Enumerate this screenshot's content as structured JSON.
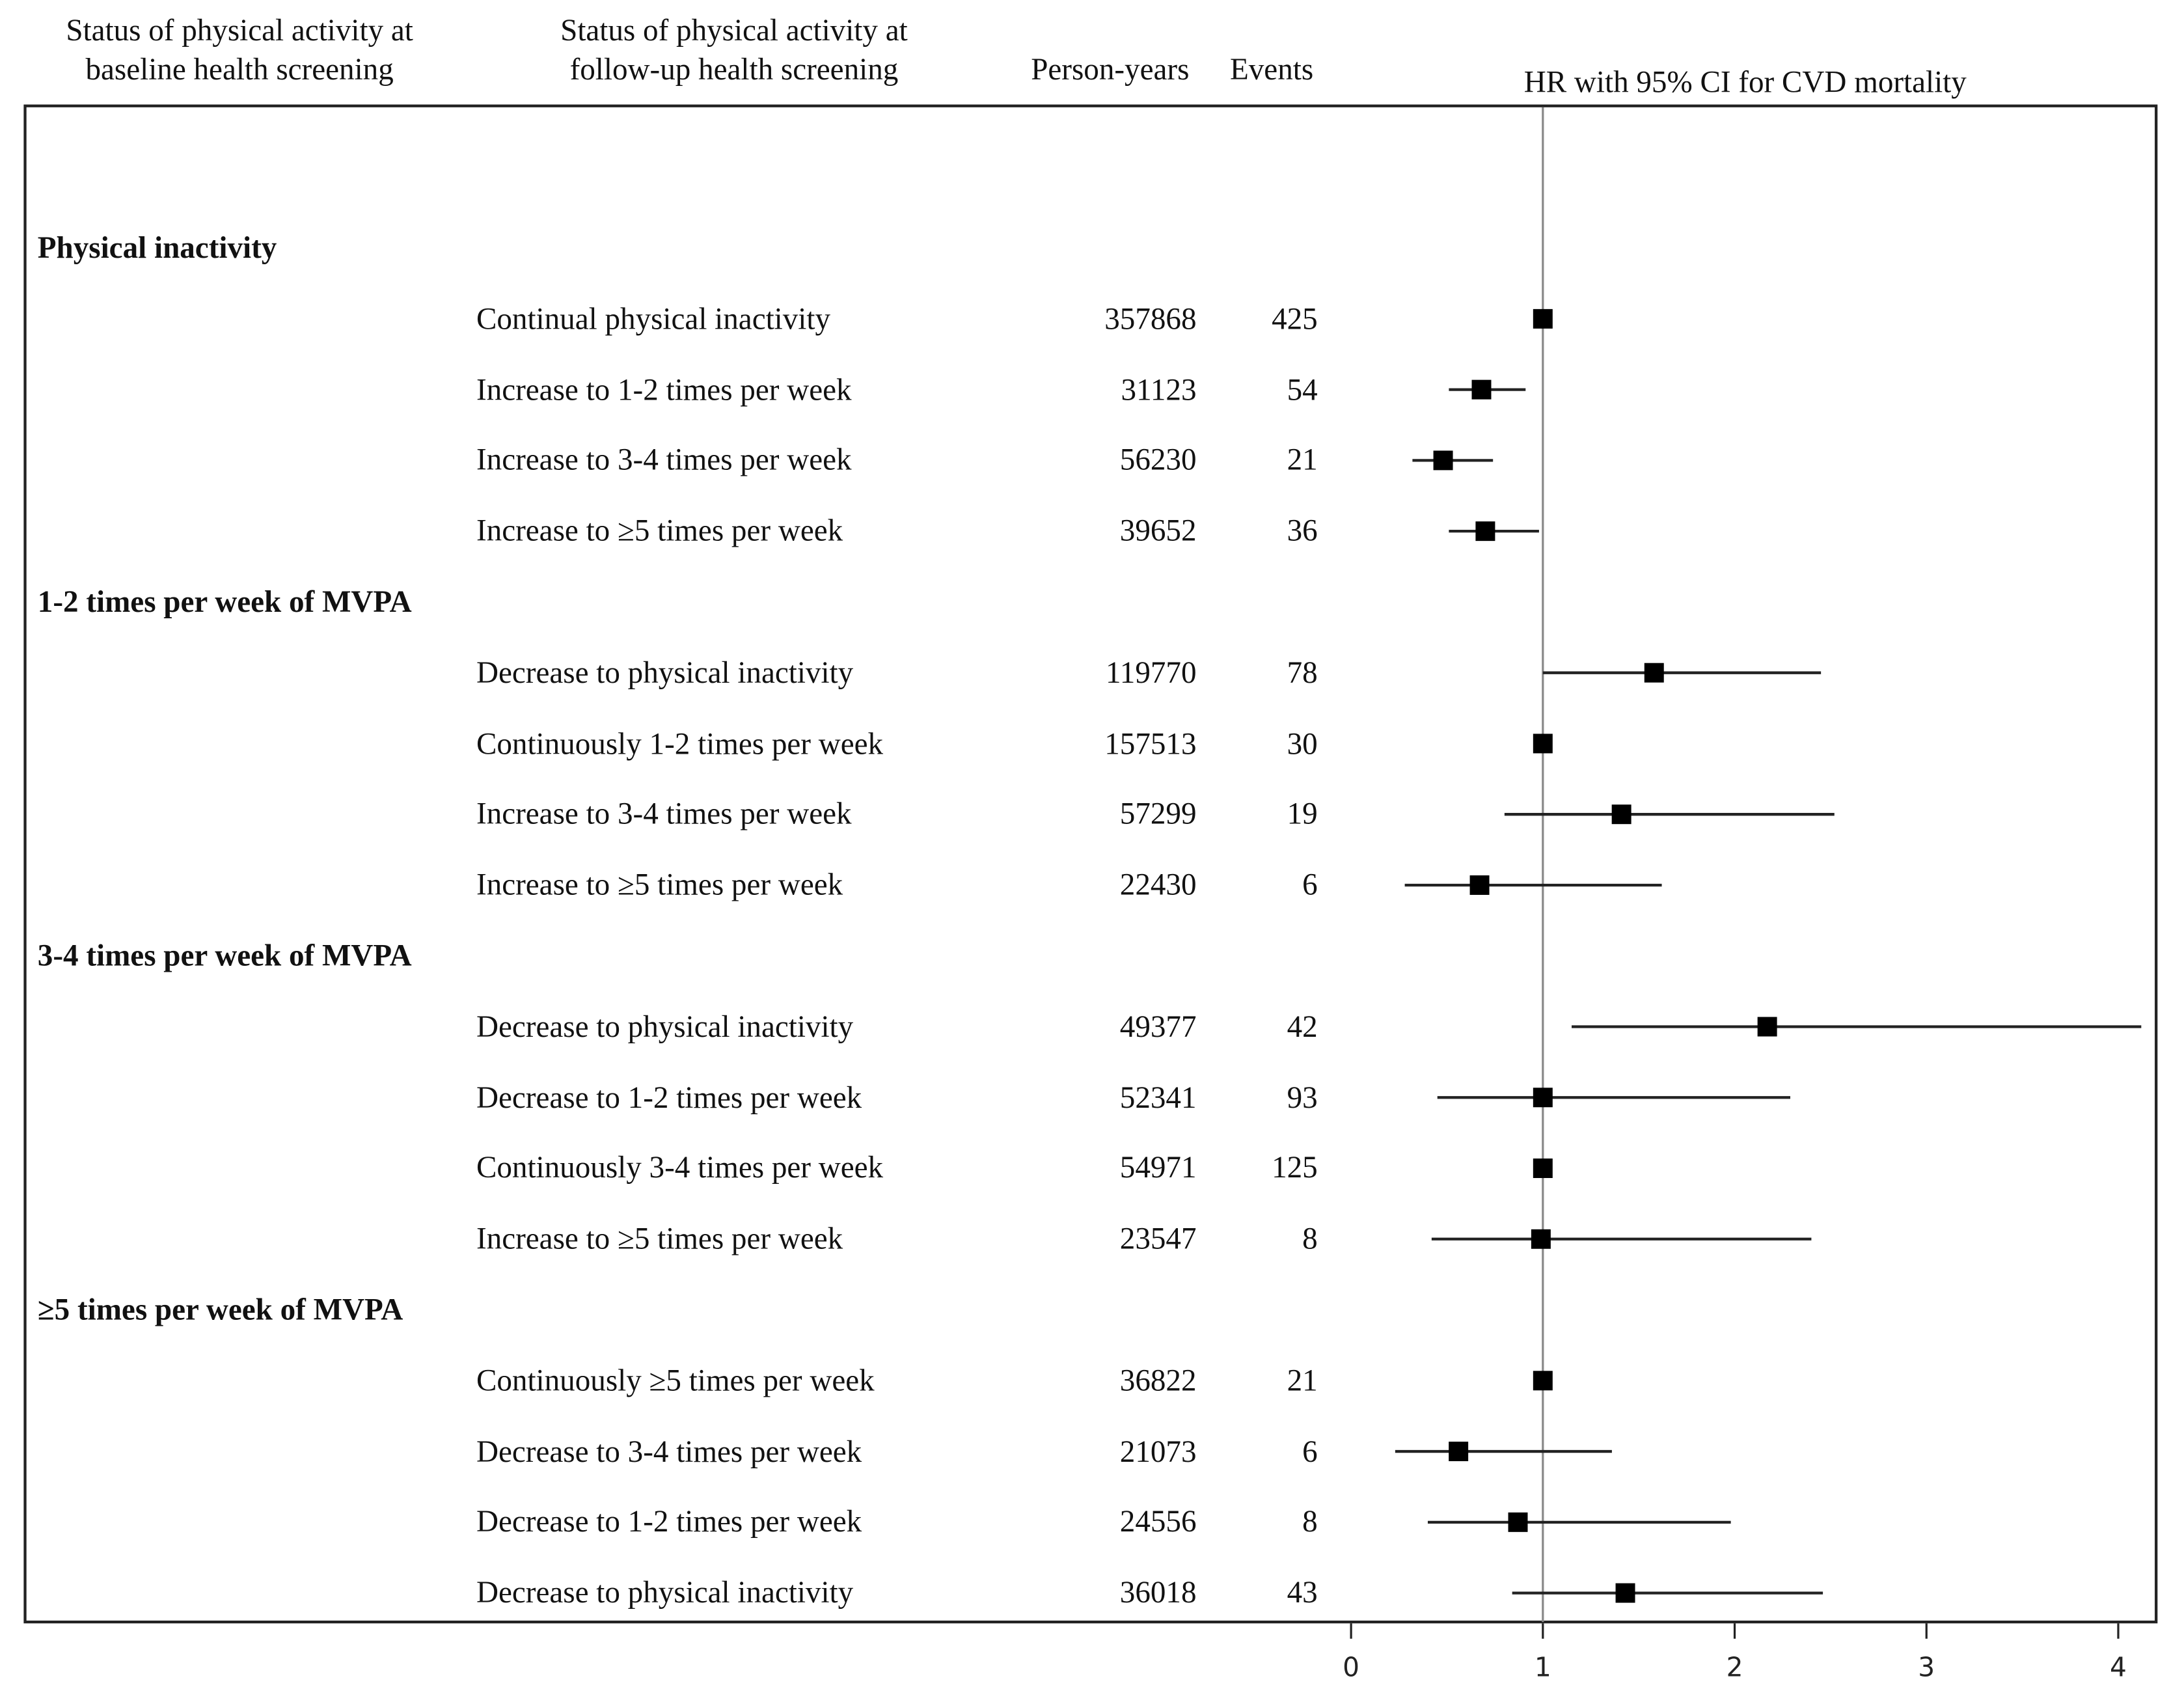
{
  "headers": {
    "baseline": [
      "Status of physical activity at",
      "baseline health screening"
    ],
    "followup": [
      "Status of physical activity at",
      "follow-up health screening"
    ],
    "person_years": "Person-years",
    "events": "Events",
    "hr": "HR with 95% CI for CVD mortality"
  },
  "chart_data": {
    "type": "forest",
    "title": "HR with 95% CI for CVD mortality",
    "xlim": [
      0,
      4.15
    ],
    "x_ticks": [
      0,
      1,
      2,
      3,
      4
    ],
    "reference_line": 1,
    "groups": [
      {
        "label": "Physical inactivity",
        "rows": [
          {
            "label": "Continual physical inactivity",
            "person_years": "357868",
            "events": "425",
            "hr": 1.0,
            "lo": 1.0,
            "hi": 1.0
          },
          {
            "label": "Increase to 1-2 times per week",
            "person_years": "31123",
            "events": "54",
            "hr": 0.68,
            "lo": 0.51,
            "hi": 0.91
          },
          {
            "label": "Increase to 3-4 times per week",
            "person_years": "56230",
            "events": "21",
            "hr": 0.48,
            "lo": 0.32,
            "hi": 0.74
          },
          {
            "label": "Increase to ≥5 times per week",
            "person_years": "39652",
            "events": "36",
            "hr": 0.7,
            "lo": 0.51,
            "hi": 0.98
          }
        ]
      },
      {
        "label": "1-2 times per week of MVPA",
        "rows": [
          {
            "label": "Decrease to physical inactivity",
            "person_years": "119770",
            "events": "78",
            "hr": 1.58,
            "lo": 1.0,
            "hi": 2.45
          },
          {
            "label": "Continuously 1-2 times per week",
            "person_years": "157513",
            "events": "30",
            "hr": 1.0,
            "lo": 1.0,
            "hi": 1.0
          },
          {
            "label": "Increase to 3-4 times per week",
            "person_years": "57299",
            "events": "19",
            "hr": 1.41,
            "lo": 0.8,
            "hi": 2.52
          },
          {
            "label": "Increase to ≥5 times per week",
            "person_years": "22430",
            "events": "6",
            "hr": 0.67,
            "lo": 0.28,
            "hi": 1.62
          }
        ]
      },
      {
        "label": "3-4 times per week of MVPA",
        "rows": [
          {
            "label": "Decrease to physical inactivity",
            "person_years": "49377",
            "events": "42",
            "hr": 2.17,
            "lo": 1.15,
            "hi": 4.12
          },
          {
            "label": "Decrease to 1-2 times per week",
            "person_years": "52341",
            "events": "93",
            "hr": 1.0,
            "lo": 0.45,
            "hi": 2.29
          },
          {
            "label": "Continuously 3-4 times per week",
            "person_years": "54971",
            "events": "125",
            "hr": 1.0,
            "lo": 1.0,
            "hi": 1.0
          },
          {
            "label": "Increase to ≥5 times per week",
            "person_years": "23547",
            "events": "8",
            "hr": 0.99,
            "lo": 0.42,
            "hi": 2.4
          }
        ]
      },
      {
        "label": "≥5 times per week of MVPA",
        "rows": [
          {
            "label": "Continuously ≥5 times per week",
            "person_years": "36822",
            "events": "21",
            "hr": 1.0,
            "lo": 1.0,
            "hi": 1.0
          },
          {
            "label": "Decrease to 3-4 times per week",
            "person_years": "21073",
            "events": "6",
            "hr": 0.56,
            "lo": 0.23,
            "hi": 1.36
          },
          {
            "label": "Decrease to 1-2 times per week",
            "person_years": "24556",
            "events": "8",
            "hr": 0.87,
            "lo": 0.4,
            "hi": 1.98
          },
          {
            "label": "Decrease to physical inactivity",
            "person_years": "36018",
            "events": "43",
            "hr": 1.43,
            "lo": 0.84,
            "hi": 2.46
          }
        ]
      }
    ]
  }
}
